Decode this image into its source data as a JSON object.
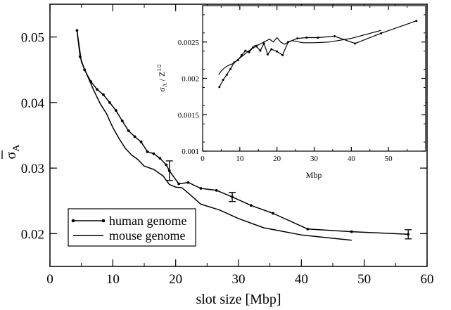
{
  "chart_data": [
    {
      "type": "line",
      "xlabel": "slot size [Mbp]",
      "ylabel": "σA",
      "xlim": [
        0,
        60
      ],
      "ylim": [
        0.015,
        0.055
      ],
      "xticks": [
        "0",
        "10",
        "20",
        "30",
        "40",
        "50",
        "60"
      ],
      "yticks": [
        "0.02",
        "0.03",
        "0.04",
        "0.05"
      ],
      "legend_position": "bottom-left",
      "series": [
        {
          "name": "human genome",
          "marker": "dot",
          "x": [
            4.3,
            4.8,
            5.5,
            6.5,
            7.5,
            8.5,
            9.5,
            10.5,
            11.5,
            12.5,
            13.5,
            14.5,
            15.5,
            16.5,
            17.5,
            18.5,
            19.0,
            20.5,
            22.0,
            24.0,
            26.5,
            29.0,
            32.0,
            35.5,
            41.0,
            48.0,
            57.0
          ],
          "y": [
            0.051,
            0.047,
            0.045,
            0.0432,
            0.042,
            0.0412,
            0.04,
            0.0388,
            0.0372,
            0.0357,
            0.0348,
            0.034,
            0.0325,
            0.0322,
            0.0315,
            0.0305,
            0.0296,
            0.0276,
            0.0278,
            0.0269,
            0.0266,
            0.0256,
            0.0243,
            0.0231,
            0.0207,
            0.0203,
            0.0199
          ]
        },
        {
          "name": "mouse genome",
          "marker": "none",
          "x": [
            4.3,
            5.0,
            6.0,
            7.0,
            8.0,
            9.0,
            10.0,
            11.0,
            12.0,
            13.0,
            14.0,
            15.0,
            16.5,
            18.0,
            19.0,
            20.0,
            21.0,
            22.0,
            24.0,
            27.0,
            30.0,
            34.0,
            40.0,
            48.0
          ],
          "y": [
            0.051,
            0.0462,
            0.044,
            0.0418,
            0.0398,
            0.0383,
            0.0362,
            0.0345,
            0.033,
            0.032,
            0.0313,
            0.0303,
            0.0298,
            0.0288,
            0.0275,
            0.0271,
            0.027,
            0.0262,
            0.0245,
            0.0236,
            0.0223,
            0.0209,
            0.0198,
            0.019
          ]
        }
      ],
      "error_bars": [
        {
          "x": 19.0,
          "y": 0.0296,
          "low": 0.0281,
          "high": 0.0311
        },
        {
          "x": 29.0,
          "y": 0.0256,
          "low": 0.0249,
          "high": 0.0263
        },
        {
          "x": 57.0,
          "y": 0.0199,
          "low": 0.0192,
          "high": 0.0206
        }
      ],
      "inset": {
        "type": "line",
        "xlabel": "Mbp",
        "ylabel": "σA / Z^1/2",
        "xlim": [
          0,
          60
        ],
        "ylim": [
          0.001,
          0.003
        ],
        "xticks": [
          "0",
          "10",
          "20",
          "30",
          "40",
          "50"
        ],
        "yticks": [
          "0.001",
          "0.0015",
          "0.002",
          "0.0025"
        ],
        "series": [
          {
            "name": "human genome",
            "marker": "dot",
            "x": [
              4.5,
              5.5,
              6.5,
              7.5,
              8.5,
              9.5,
              10.5,
              11.5,
              12.5,
              13.5,
              14.5,
              15.5,
              16.5,
              17.5,
              18.5,
              20.0,
              21.5,
              23.0,
              25.5,
              28.0,
              31.0,
              35.5,
              41.0,
              48.0,
              57.5
            ],
            "y": [
              0.00188,
              0.00198,
              0.00205,
              0.00213,
              0.00222,
              0.00225,
              0.00232,
              0.00238,
              0.00236,
              0.00242,
              0.00244,
              0.00238,
              0.00248,
              0.00233,
              0.0024,
              0.00237,
              0.00232,
              0.0025,
              0.00255,
              0.00256,
              0.00256,
              0.00258,
              0.00248,
              0.00262,
              0.00279
            ]
          },
          {
            "name": "mouse genome",
            "marker": "none",
            "x": [
              4.3,
              5.0,
              6.0,
              7.0,
              8.0,
              9.0,
              10.0,
              11.0,
              12.0,
              13.0,
              14.0,
              15.0,
              16.5,
              18.0,
              19.0,
              20.0,
              21.0,
              22.0,
              24.0,
              27.0,
              30.0,
              34.0,
              40.0,
              48.0
            ],
            "y": [
              0.00205,
              0.0021,
              0.00215,
              0.00218,
              0.0022,
              0.00224,
              0.00228,
              0.00232,
              0.00236,
              0.0024,
              0.00245,
              0.00246,
              0.0025,
              0.00254,
              0.0025,
              0.00256,
              0.0025,
              0.00247,
              0.00252,
              0.00249,
              0.00249,
              0.0025,
              0.00255,
              0.00266
            ]
          }
        ]
      }
    }
  ]
}
